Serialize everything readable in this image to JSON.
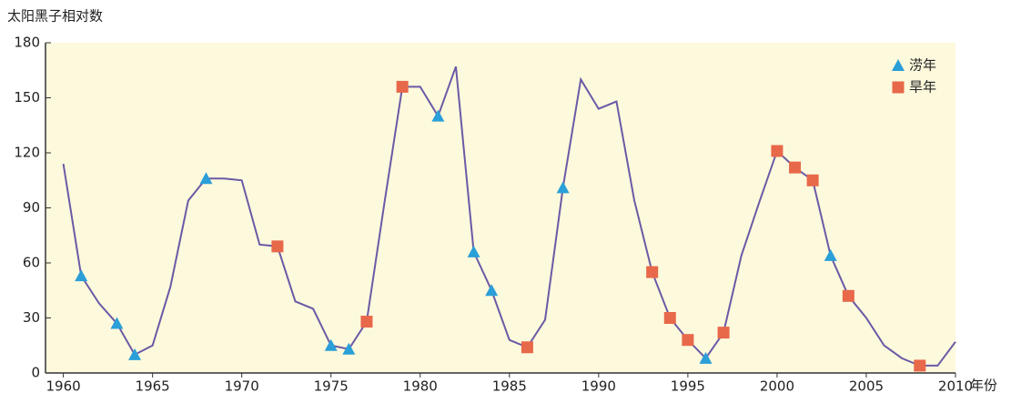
{
  "chart_data": {
    "type": "line",
    "y_label": "太阳黑子相对数",
    "x_label": "年份",
    "xlim": [
      1959,
      2010
    ],
    "ylim": [
      0,
      180
    ],
    "xticks": [
      1960,
      1965,
      1970,
      1975,
      1980,
      1985,
      1990,
      1995,
      2000,
      2005,
      2010
    ],
    "yticks": [
      0,
      30,
      60,
      90,
      120,
      150,
      180
    ],
    "grid": false,
    "legend": "upper right",
    "background": "#fdf9dc",
    "x": [
      1960,
      1961,
      1962,
      1963,
      1964,
      1965,
      1966,
      1967,
      1968,
      1969,
      1970,
      1971,
      1972,
      1973,
      1974,
      1975,
      1976,
      1977,
      1978,
      1979,
      1980,
      1981,
      1982,
      1983,
      1984,
      1985,
      1986,
      1987,
      1988,
      1989,
      1990,
      1991,
      1992,
      1993,
      1994,
      1995,
      1996,
      1997,
      1998,
      1999,
      2000,
      2001,
      2002,
      2003,
      2004,
      2005,
      2006,
      2007,
      2008,
      2009,
      2010
    ],
    "series": [
      {
        "color": "#6b5aa6",
        "values": [
          114,
          53,
          38,
          27,
          10,
          15,
          47,
          94,
          106,
          106,
          105,
          70,
          69,
          39,
          35,
          15,
          13,
          28,
          93,
          156,
          156,
          140,
          167,
          66,
          45,
          18,
          14,
          29,
          101,
          160,
          144,
          148,
          94,
          55,
          30,
          18,
          8,
          22,
          64,
          93,
          121,
          112,
          105,
          64,
          42,
          30,
          15,
          8,
          4,
          4,
          17
        ]
      },
      {
        "name": "涝年",
        "color": "#2a9fd8",
        "marker": "triangle",
        "x": [
          1961,
          1963,
          1964,
          1968,
          1975,
          1976,
          1981,
          1983,
          1984,
          1988,
          1996,
          2003
        ],
        "values": [
          53,
          27,
          10,
          106,
          15,
          13,
          140,
          66,
          45,
          101,
          8,
          64
        ]
      },
      {
        "name": "旱年",
        "color": "#e8684a",
        "marker": "square",
        "x": [
          1972,
          1977,
          1979,
          1986,
          1993,
          1994,
          1995,
          1997,
          2000,
          2001,
          2002,
          2004,
          2008
        ],
        "values": [
          69,
          28,
          156,
          14,
          55,
          30,
          18,
          22,
          121,
          112,
          105,
          42,
          4
        ]
      }
    ]
  }
}
